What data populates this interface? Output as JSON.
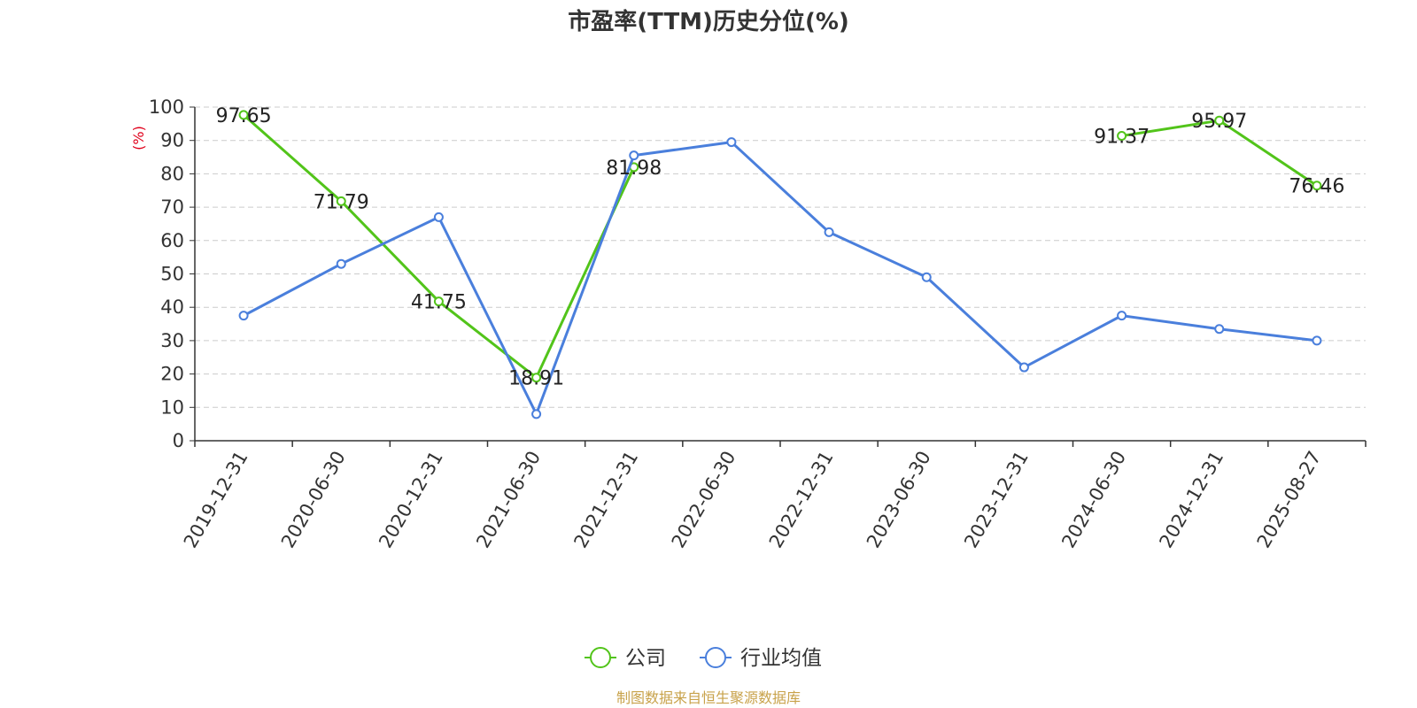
{
  "chart_data": {
    "type": "line",
    "title": "市盈率(TTM)历史分位(%)",
    "ylabel": "(%)",
    "xlabel": "",
    "ylim": [
      0,
      100
    ],
    "yticks": [
      0,
      10,
      20,
      30,
      40,
      50,
      60,
      70,
      80,
      90,
      100
    ],
    "grid": true,
    "legend_position": "bottom-center",
    "categories": [
      "2019-12-31",
      "2020-06-30",
      "2020-12-31",
      "2021-06-30",
      "2021-12-31",
      "2022-06-30",
      "2022-12-31",
      "2023-06-30",
      "2023-12-31",
      "2024-06-30",
      "2024-12-31",
      "2025-08-27"
    ],
    "series": [
      {
        "name": "公司",
        "color": "#52c41a",
        "values": [
          97.65,
          71.79,
          41.75,
          18.91,
          81.98,
          null,
          null,
          null,
          null,
          91.37,
          95.97,
          76.46
        ],
        "labels": [
          "97.65",
          "71.79",
          "41.75",
          "18.91",
          "81.98",
          "",
          "",
          "",
          "",
          "91.37",
          "95.97",
          "76.46"
        ]
      },
      {
        "name": "行业均值",
        "color": "#4a7fdc",
        "values": [
          37.5,
          53,
          67,
          8,
          85.5,
          89.5,
          62.5,
          49,
          22,
          37.5,
          33.5,
          30
        ]
      }
    ],
    "source_note": "制图数据来自恒生聚源数据库",
    "source_color": "#c8a24a",
    "axis_color": "#333333",
    "grid_color": "#cccccc",
    "ylabel_color": "#e0001b"
  }
}
